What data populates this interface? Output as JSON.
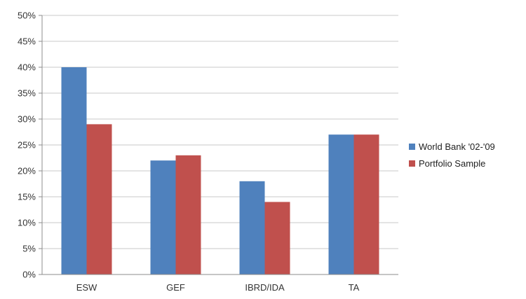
{
  "chart_data": {
    "type": "bar",
    "categories": [
      "ESW",
      "GEF",
      "IBRD/IDA",
      "TA"
    ],
    "series": [
      {
        "name": "World Bank '02-'09",
        "color": "#4F81BD",
        "values": [
          40,
          22,
          18,
          27
        ]
      },
      {
        "name": "Portfolio Sample",
        "color": "#C0504D",
        "values": [
          29,
          23,
          14,
          27
        ]
      }
    ],
    "ylim": [
      0,
      50
    ],
    "y_ticks": [
      0,
      5,
      10,
      15,
      20,
      25,
      30,
      35,
      40,
      45,
      50
    ],
    "y_tick_format": "percent",
    "grid": true,
    "legend_position": "right",
    "title": "",
    "xlabel": "",
    "ylabel": ""
  }
}
